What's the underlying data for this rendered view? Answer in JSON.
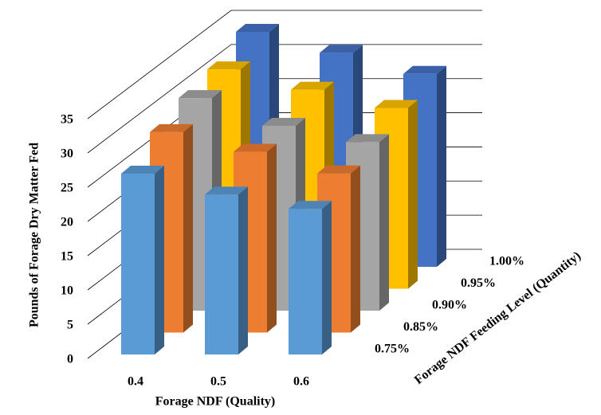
{
  "chart_data": {
    "type": "bar3d",
    "x_label": "Forage NDF (Quality)",
    "y_label": "Pounds of Forage Dry Matter Fed",
    "z_label": "Forage NDF Feeding Level (Quantity)",
    "categories": [
      "0.4",
      "0.5",
      "0.6"
    ],
    "series": [
      {
        "name": "0.75%",
        "color": "#5B9BD5",
        "values": [
          26.7,
          23.6,
          21.5
        ]
      },
      {
        "name": "0.85%",
        "color": "#ED7D31",
        "values": [
          29.6,
          26.7,
          23.5
        ]
      },
      {
        "name": "0.90%",
        "color": "#A5A5A5",
        "values": [
          31.4,
          27.3,
          24.9
        ]
      },
      {
        "name": "0.95%",
        "color": "#FFC000",
        "values": [
          32.4,
          29.4,
          26.7
        ]
      },
      {
        "name": "1.00%",
        "color": "#4472C4",
        "values": [
          34.7,
          31.6,
          28.5
        ]
      }
    ],
    "ylim": [
      0,
      35
    ],
    "yticks": [
      0,
      5,
      10,
      15,
      20,
      25,
      30,
      35
    ],
    "grid": true
  }
}
